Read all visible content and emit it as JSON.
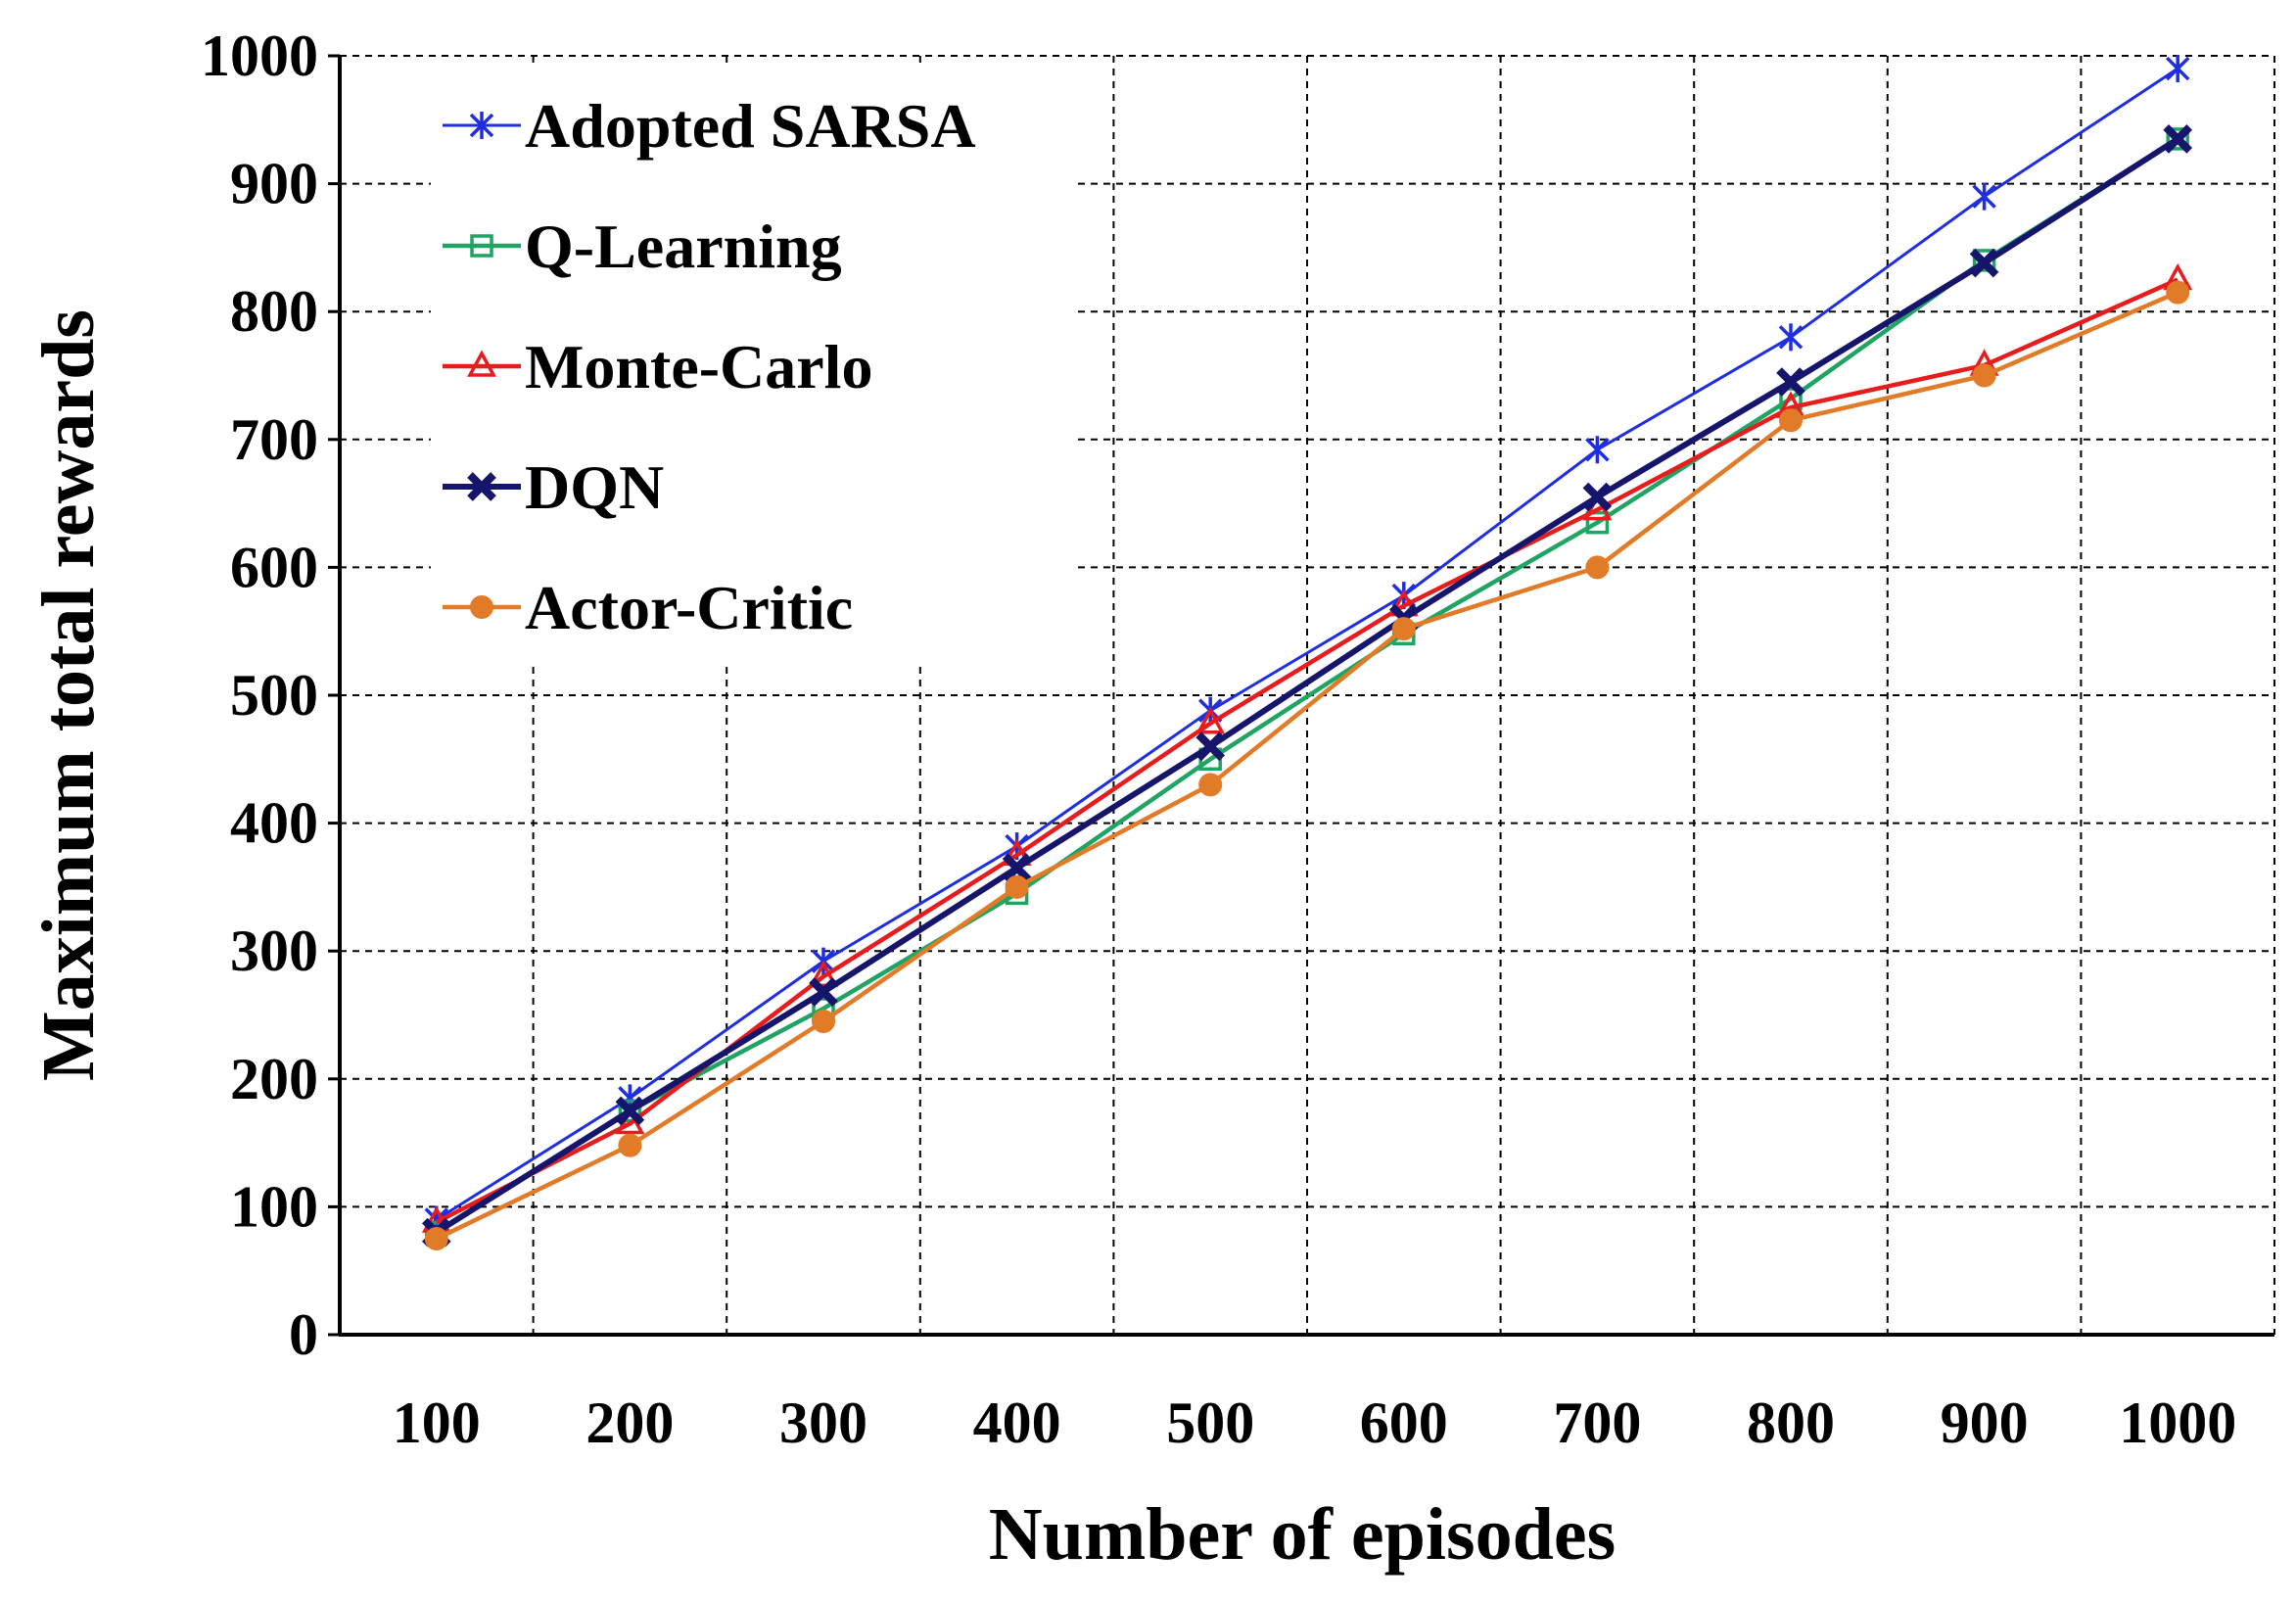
{
  "chart_data": {
    "type": "line",
    "title": "",
    "xlabel": "Number of episodes",
    "ylabel": "Maximum total rewards",
    "categories": [
      "100",
      "200",
      "300",
      "400",
      "500",
      "600",
      "700",
      "800",
      "900",
      "1000"
    ],
    "ylim": [
      0,
      1000
    ],
    "yticks": [
      "0",
      "100",
      "200",
      "300",
      "400",
      "500",
      "600",
      "700",
      "800",
      "900",
      "1000"
    ],
    "grid": true,
    "legend_position": "top-left",
    "series": [
      {
        "name": "Adopted SARSA",
        "color": "#1f2ee0",
        "marker": "asterisk",
        "values": [
          90,
          185,
          292,
          382,
          488,
          578,
          692,
          780,
          890,
          990
        ]
      },
      {
        "name": "Q-Learning",
        "color": "#1fa463",
        "marker": "square",
        "values": [
          80,
          175,
          255,
          345,
          450,
          548,
          635,
          732,
          840,
          935
        ]
      },
      {
        "name": "Monte-Carlo",
        "color": "#e81c1c",
        "marker": "triangle",
        "values": [
          88,
          165,
          280,
          375,
          478,
          570,
          645,
          725,
          758,
          825
        ]
      },
      {
        "name": "DQN",
        "color": "#15156b",
        "marker": "cross",
        "values": [
          80,
          175,
          268,
          365,
          460,
          560,
          655,
          745,
          838,
          935
        ]
      },
      {
        "name": "Actor-Critic",
        "color": "#e27b28",
        "marker": "circle",
        "values": [
          75,
          148,
          245,
          350,
          430,
          552,
          600,
          715,
          750,
          815
        ]
      }
    ]
  }
}
